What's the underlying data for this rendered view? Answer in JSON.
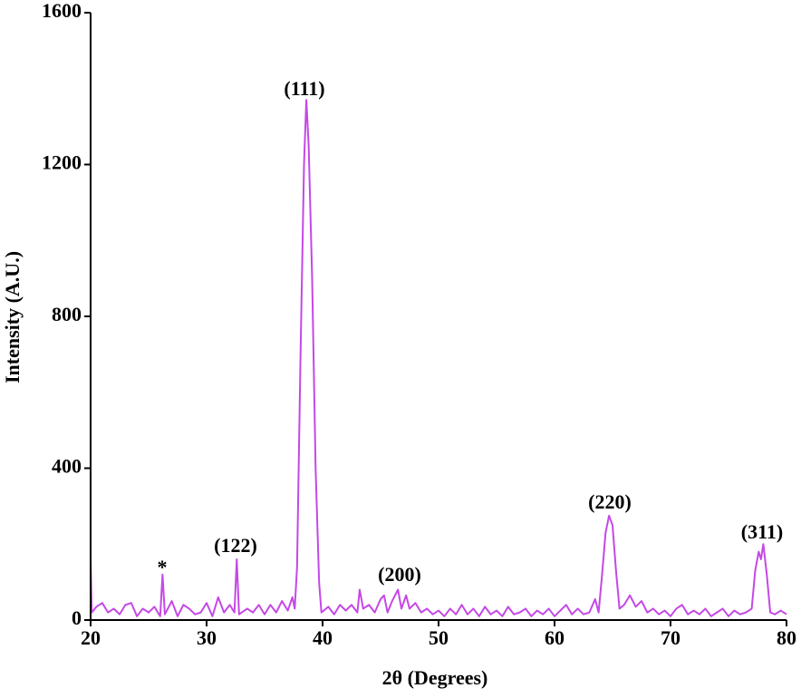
{
  "chart_data": {
    "type": "line",
    "x_label": "2θ (Degrees)",
    "y_label": "Intensity (A.U.)",
    "xlim": [
      20,
      80
    ],
    "xticks": [
      20,
      30,
      40,
      50,
      60,
      70,
      80
    ],
    "ylim": [
      0,
      1600
    ],
    "yticks": [
      0,
      400,
      800,
      1200,
      1600
    ],
    "grid": false,
    "annotations": [
      "*",
      "(122)",
      "(111)",
      "(200)",
      "(220)",
      "(311)"
    ],
    "series": [
      {
        "color": "#c548e6",
        "x": [
          20,
          20.1,
          20.5,
          21,
          21.5,
          22,
          22.5,
          23,
          23.5,
          24,
          24.5,
          25,
          25.5,
          26,
          26.2,
          26.4,
          27,
          27.5,
          28,
          28.5,
          29,
          29.5,
          30,
          30.5,
          31,
          31.5,
          32,
          32.4,
          32.6,
          32.8,
          33.5,
          34,
          34.5,
          35,
          35.5,
          36,
          36.5,
          37,
          37.4,
          37.6,
          37.8,
          38.1,
          38.4,
          38.6,
          38.8,
          39.1,
          39.4,
          39.7,
          39.9,
          40.5,
          41,
          41.5,
          42,
          42.5,
          43,
          43.2,
          43.5,
          44,
          44.5,
          45,
          45.3,
          45.6,
          46,
          46.5,
          46.8,
          47.2,
          47.5,
          48,
          48.5,
          49,
          49.5,
          50,
          50.5,
          51,
          51.5,
          52,
          52.5,
          53,
          53.5,
          54,
          54.5,
          55,
          55.5,
          56,
          56.5,
          57,
          57.5,
          58,
          58.5,
          59,
          59.5,
          60,
          60.5,
          61,
          61.5,
          62,
          62.5,
          63,
          63.5,
          63.8,
          64.1,
          64.4,
          64.7,
          65,
          65.3,
          65.6,
          66,
          66.5,
          67,
          67.5,
          68,
          68.5,
          69,
          69.5,
          70,
          70.5,
          71,
          71.5,
          72,
          72.5,
          73,
          73.5,
          74,
          74.5,
          75,
          75.5,
          76,
          76.5,
          77,
          77.3,
          77.6,
          77.8,
          78,
          78.3,
          78.6,
          79,
          79.5,
          80
        ],
        "values": [
          160,
          20,
          35,
          45,
          20,
          30,
          15,
          40,
          45,
          10,
          30,
          20,
          35,
          10,
          120,
          15,
          50,
          10,
          40,
          30,
          15,
          20,
          45,
          10,
          60,
          20,
          40,
          20,
          160,
          15,
          30,
          20,
          40,
          15,
          40,
          20,
          50,
          25,
          60,
          30,
          140,
          700,
          1200,
          1370,
          1250,
          900,
          400,
          100,
          20,
          35,
          15,
          40,
          25,
          40,
          20,
          80,
          30,
          40,
          20,
          55,
          65,
          20,
          50,
          80,
          30,
          65,
          30,
          45,
          20,
          30,
          15,
          25,
          10,
          30,
          15,
          40,
          15,
          30,
          10,
          35,
          15,
          25,
          10,
          35,
          15,
          20,
          30,
          10,
          25,
          15,
          30,
          10,
          25,
          40,
          15,
          30,
          15,
          20,
          55,
          20,
          120,
          230,
          275,
          250,
          130,
          30,
          40,
          65,
          35,
          50,
          20,
          30,
          15,
          25,
          10,
          30,
          40,
          15,
          25,
          15,
          30,
          10,
          20,
          30,
          10,
          25,
          15,
          20,
          30,
          130,
          180,
          160,
          200,
          120,
          20,
          15,
          25,
          15
        ]
      }
    ]
  }
}
